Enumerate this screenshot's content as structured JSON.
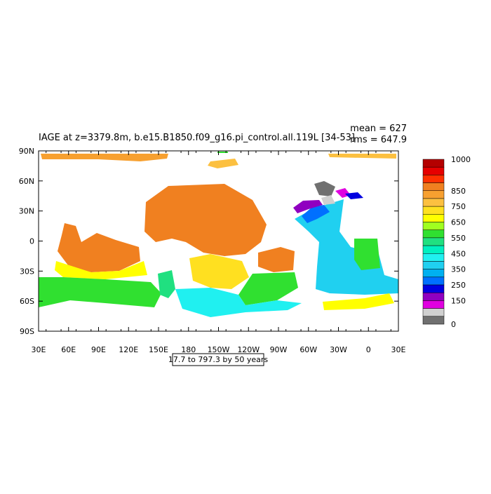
{
  "map": {
    "title": "IAGE at z=3379.8m, b.e15.B1850.f09_g16.pi_control.all.119L [34-53]",
    "mean": "mean = 627",
    "rms": "rms = 647.9",
    "x_labels": [
      "30E",
      "60E",
      "90E",
      "120E",
      "150E",
      "180",
      "150W",
      "120W",
      "90W",
      "60W",
      "30W",
      "0",
      "30E"
    ],
    "y_labels": [
      "90N",
      "60N",
      "30N",
      "0",
      "30S",
      "60S",
      "90S"
    ],
    "footnote": "17.7 to 797.3 by 50 years",
    "colorbar": {
      "labels": [
        "1000",
        "850",
        "750",
        "650",
        "550",
        "450",
        "350",
        "250",
        "150",
        "0"
      ],
      "colors": [
        "#b40000",
        "#e60000",
        "#ff3000",
        "#f08020",
        "#f7a030",
        "#fcc040",
        "#ffe020",
        "#ffff00",
        "#a0ff20",
        "#30e030",
        "#20e080",
        "#00f0c0",
        "#20f0f0",
        "#20d0f0",
        "#00b0f0",
        "#0070ff",
        "#0000e0",
        "#9000c0",
        "#e000e0",
        "#d0d0d0",
        "#707070"
      ]
    }
  }
}
